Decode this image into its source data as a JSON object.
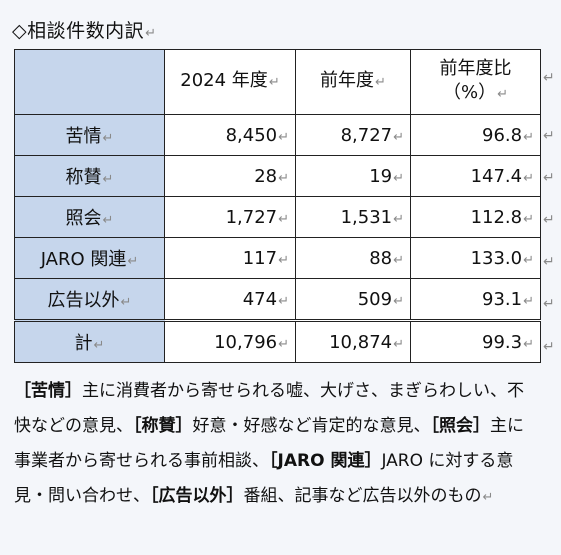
{
  "title": "◇相談件数内訳",
  "para_mark": "↵",
  "table": {
    "headers": [
      "2024 年度",
      "前年度",
      "前年度比",
      "（%）"
    ],
    "rows": [
      {
        "label": "苦情",
        "current": "8,450",
        "previous": "8,727",
        "ratio": "96.8"
      },
      {
        "label": "称賛",
        "current": "28",
        "previous": "19",
        "ratio": "147.4"
      },
      {
        "label": "照会",
        "current": "1,727",
        "previous": "1,531",
        "ratio": "112.8"
      },
      {
        "label": "JARO 関連",
        "current": "117",
        "previous": "88",
        "ratio": "133.0"
      },
      {
        "label": "広告以外",
        "current": "474",
        "previous": "509",
        "ratio": "93.1"
      }
    ],
    "total": {
      "label": "計",
      "current": "10,796",
      "previous": "10,874",
      "ratio": "99.3"
    }
  },
  "notes": [
    {
      "term": "［苦情］",
      "text": "主に消費者から寄せられる嘘、大げさ、まぎらわしい、不快などの意見、"
    },
    {
      "term": "［称賛］",
      "text": "好意・好感など肯定的な意見、"
    },
    {
      "term": "［照会］",
      "text": "主に事業者から寄せられる事前相談、"
    },
    {
      "term": "［JARO 関連］",
      "text": "JARO に対する意見・問い合わせ、"
    },
    {
      "term": "［広告以外］",
      "text": "番組、記事など広告以外のもの"
    }
  ]
}
